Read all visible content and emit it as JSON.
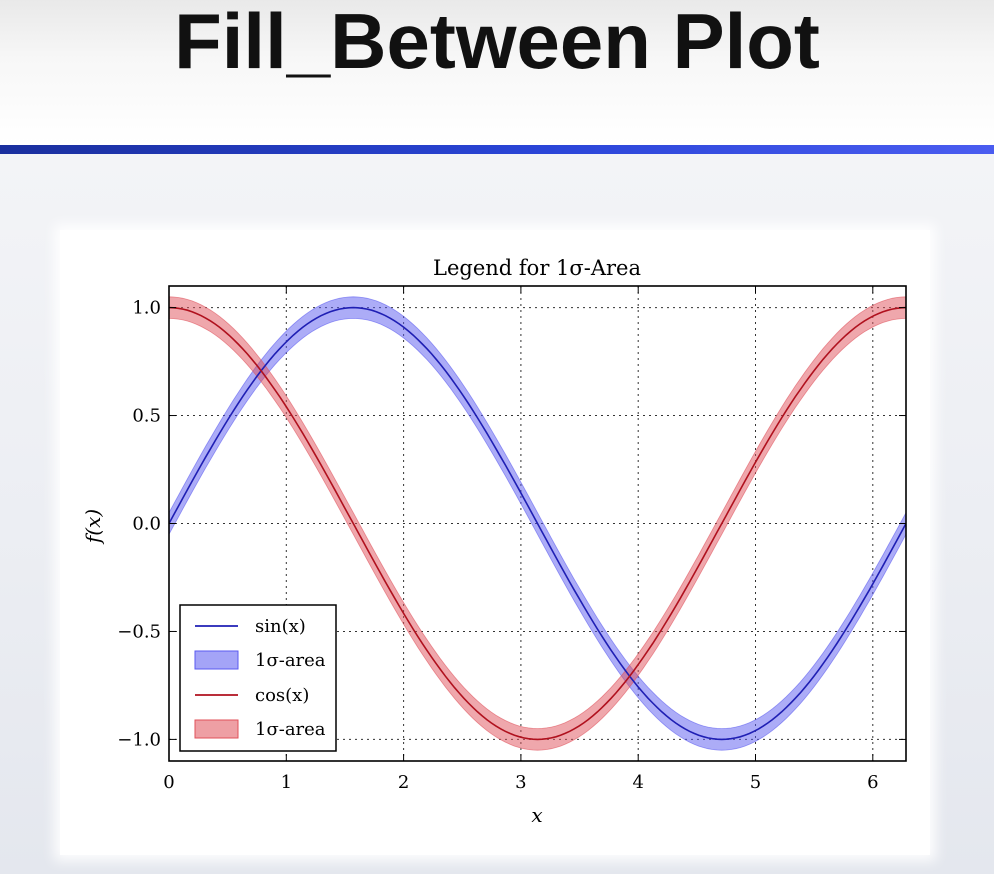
{
  "slide": {
    "title": "Fill_Between Plot"
  },
  "chart_data": {
    "type": "line",
    "title": "Legend for 1σ-Area",
    "xlabel": "x",
    "ylabel": "f(x)",
    "xlim": [
      0,
      6.283
    ],
    "ylim": [
      -1.1,
      1.1
    ],
    "xticks": [
      0,
      1,
      2,
      3,
      4,
      5,
      6
    ],
    "yticks": [
      1.0,
      0.5,
      0.0,
      -0.5,
      -1.0
    ],
    "ytick_labels": [
      "1.0",
      "0.5",
      "0.0",
      "−0.5",
      "−1.0"
    ],
    "grid": true,
    "legend_position": "lower-left",
    "series": [
      {
        "name": "sin(x)",
        "function": "sin",
        "color": "#1f1fb4",
        "band_name": "1σ-area",
        "band_color": "#5a5af0",
        "band_sigma": 0.05
      },
      {
        "name": "cos(x)",
        "function": "cos",
        "color": "#b0111e",
        "band_name": "1σ-area",
        "band_color": "#e0505a",
        "band_sigma": 0.05
      }
    ],
    "legend": [
      "sin(x)",
      "1σ-area",
      "cos(x)",
      "1σ-area"
    ]
  }
}
